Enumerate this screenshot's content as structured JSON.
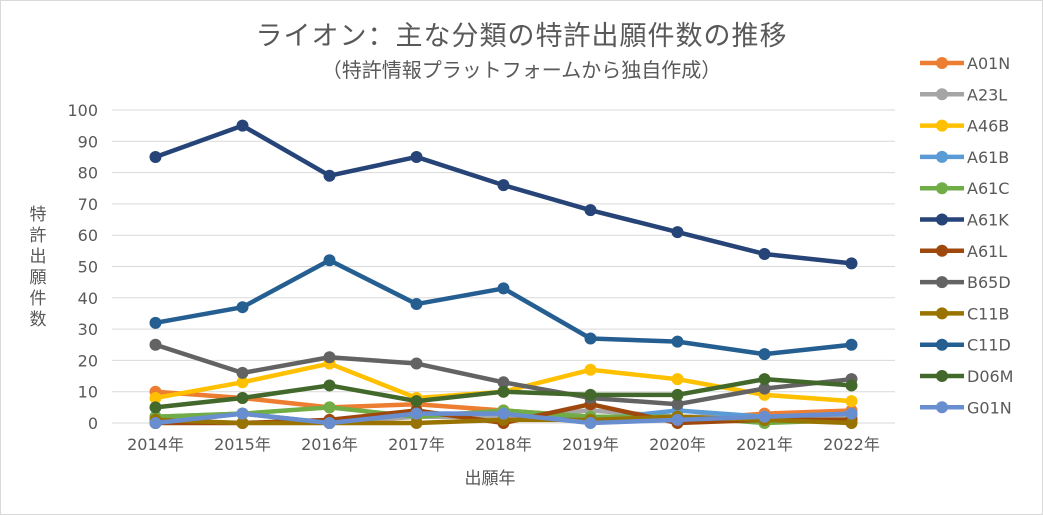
{
  "chart_data": {
    "type": "line",
    "title": "ライオン：主な分類の特許出願件数の推移",
    "subtitle": "（特許情報プラットフォームから独自作成）",
    "xlabel": "出願年",
    "ylabel": "特許出願件数",
    "ylim": [
      0,
      100
    ],
    "yticks": [
      0,
      10,
      20,
      30,
      40,
      50,
      60,
      70,
      80,
      90,
      100
    ],
    "grid": true,
    "legend_position": "right",
    "categories": [
      "2014年",
      "2015年",
      "2016年",
      "2017年",
      "2018年",
      "2019年",
      "2020年",
      "2021年",
      "2022年"
    ],
    "series": [
      {
        "name": "A01N",
        "color": "#ED7D31",
        "values": [
          10,
          8,
          5,
          6,
          4,
          2,
          1,
          3,
          4
        ]
      },
      {
        "name": "A23L",
        "color": "#A5A5A5",
        "values": [
          2,
          3,
          0,
          2,
          2,
          4,
          2,
          2,
          2
        ]
      },
      {
        "name": "A46B",
        "color": "#FFC000",
        "values": [
          8,
          13,
          19,
          8,
          10,
          17,
          14,
          9,
          7
        ]
      },
      {
        "name": "A61B",
        "color": "#5B9BD5",
        "values": [
          0,
          3,
          0,
          3,
          3,
          1,
          4,
          2,
          3
        ]
      },
      {
        "name": "A61C",
        "color": "#70AD47",
        "values": [
          2,
          3,
          5,
          2,
          4,
          2,
          2,
          0,
          1
        ]
      },
      {
        "name": "A61K",
        "color": "#264478",
        "values": [
          85,
          95,
          79,
          85,
          76,
          68,
          61,
          54,
          51
        ]
      },
      {
        "name": "A61L",
        "color": "#9E480E",
        "values": [
          0,
          0,
          1,
          4,
          0,
          6,
          0,
          1,
          1
        ]
      },
      {
        "name": "B65D",
        "color": "#636363",
        "values": [
          25,
          16,
          21,
          19,
          13,
          8,
          6,
          11,
          14
        ]
      },
      {
        "name": "C11B",
        "color": "#997300",
        "values": [
          1,
          0,
          0,
          0,
          1,
          1,
          2,
          1,
          0
        ]
      },
      {
        "name": "C11D",
        "color": "#255E91",
        "values": [
          32,
          37,
          52,
          38,
          43,
          27,
          26,
          22,
          25
        ]
      },
      {
        "name": "D06M",
        "color": "#43682B",
        "values": [
          5,
          8,
          12,
          7,
          10,
          9,
          9,
          14,
          12
        ]
      },
      {
        "name": "G01N",
        "color": "#698ED0",
        "values": [
          0,
          3,
          0,
          3,
          3,
          0,
          1,
          2,
          3
        ]
      }
    ]
  }
}
